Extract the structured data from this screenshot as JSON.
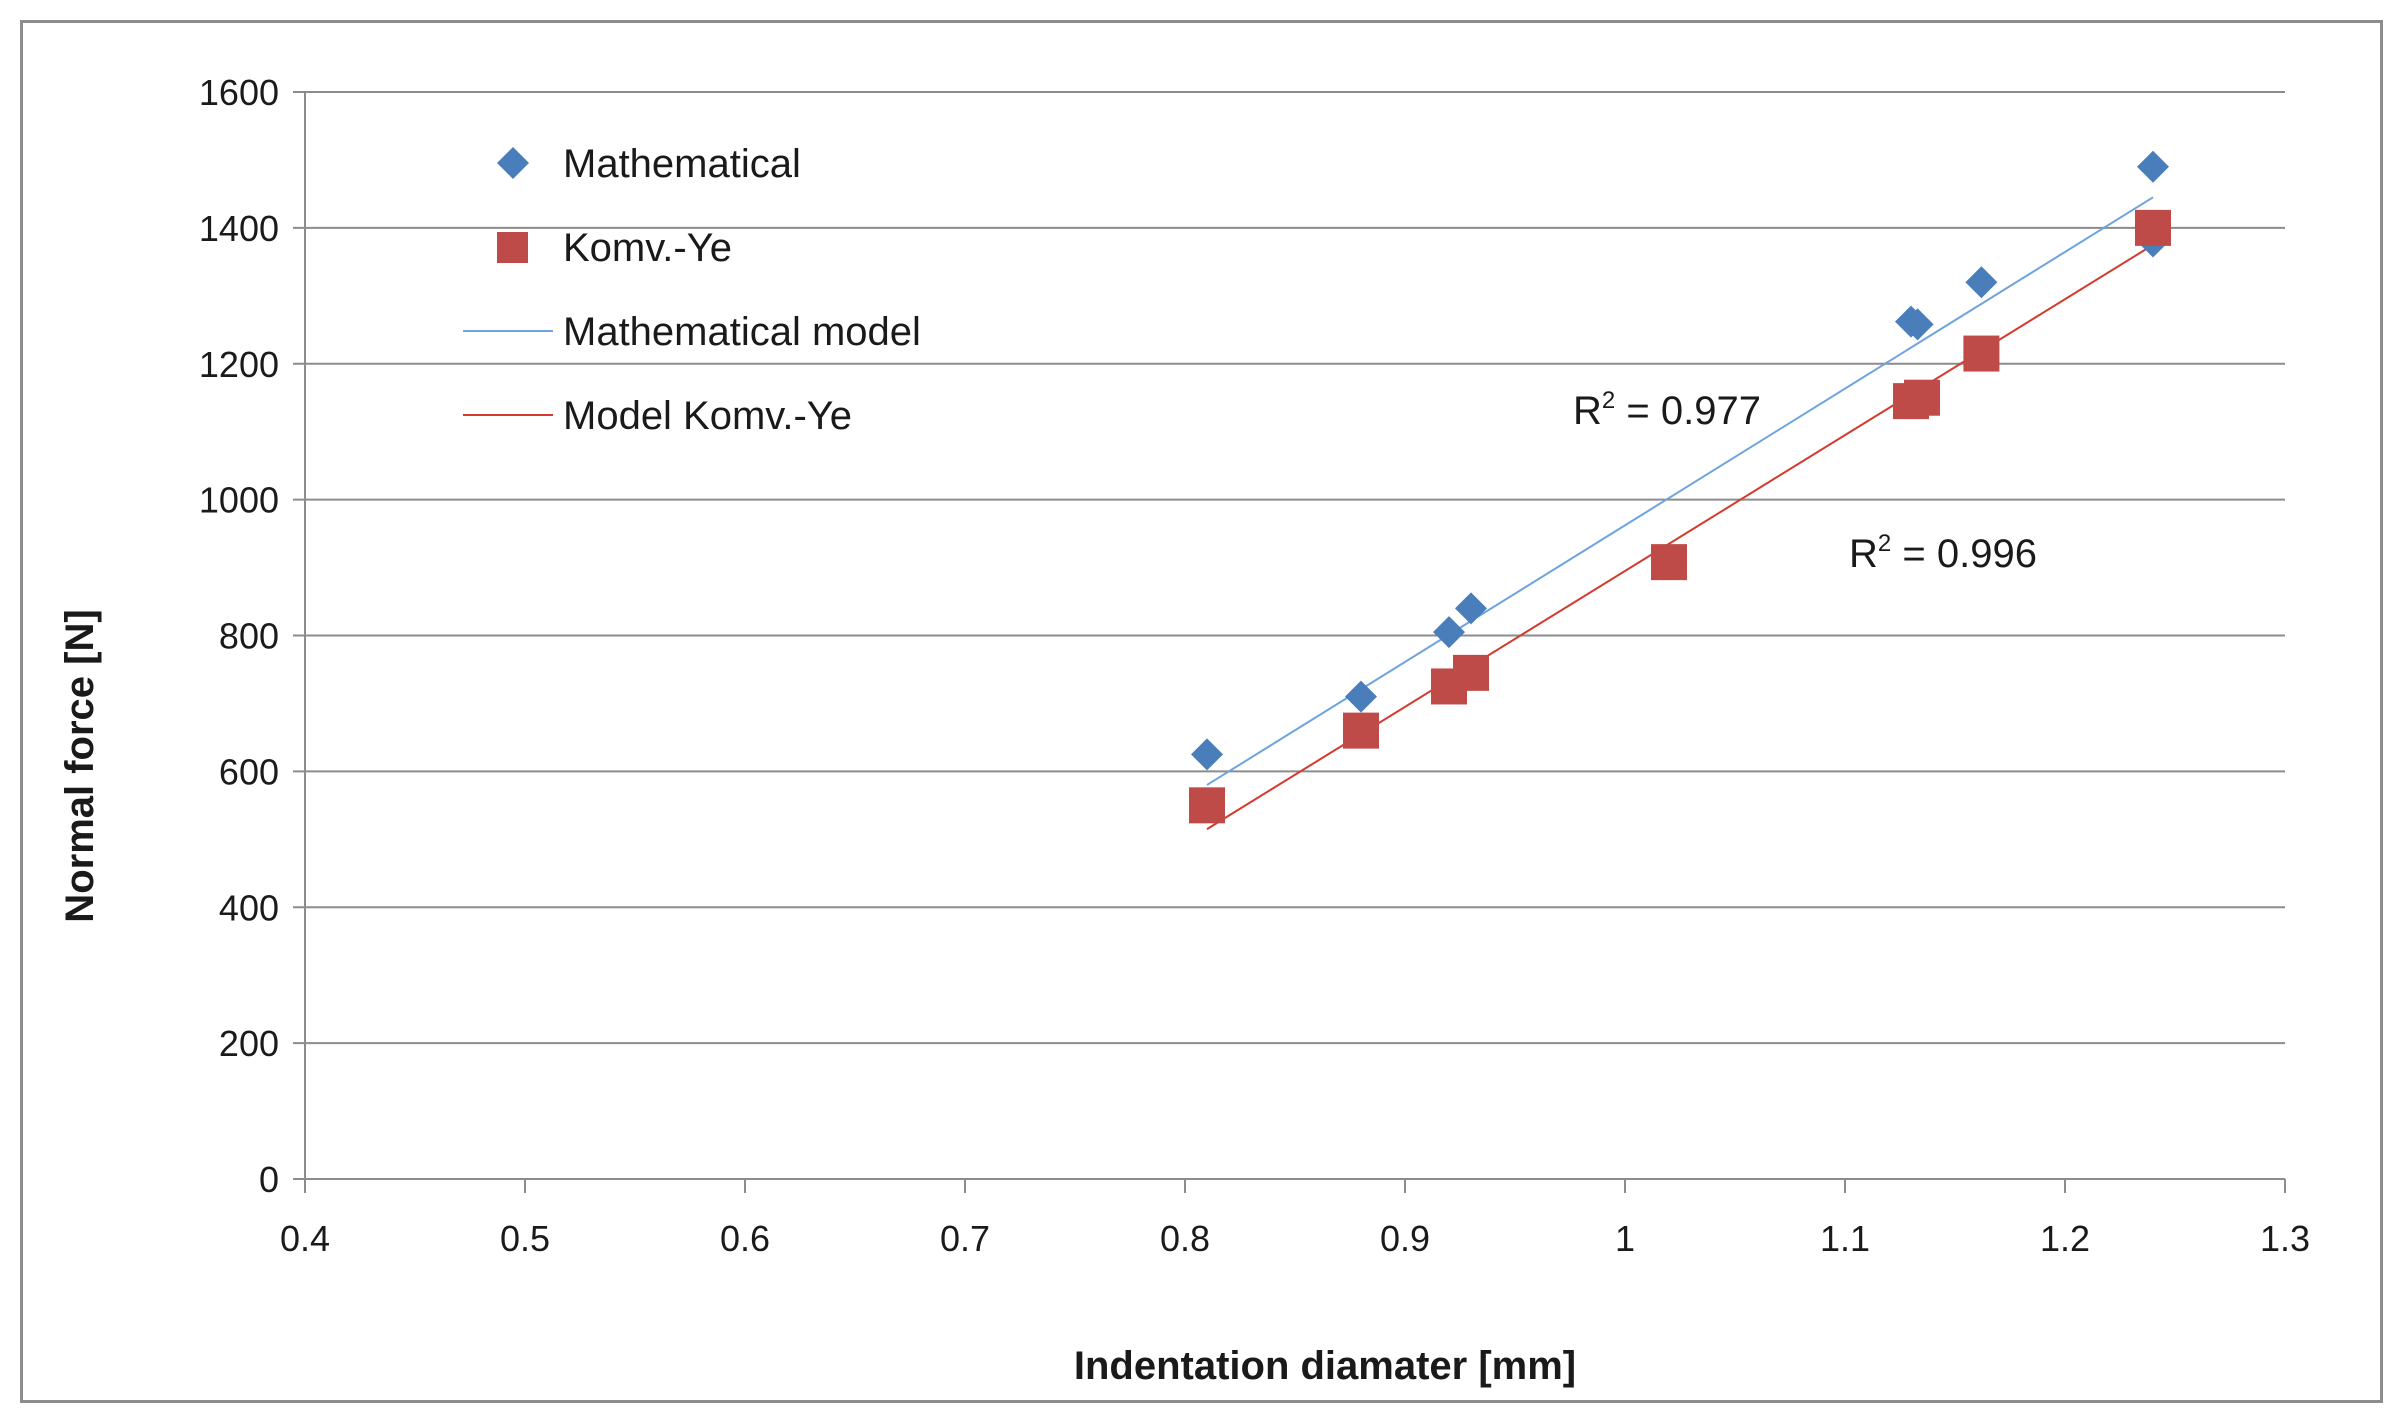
{
  "chart_data": {
    "type": "scatter",
    "title": "",
    "xlabel": "Indentation diamater [mm]",
    "ylabel": "Normal force [N]",
    "xlim": [
      0.4,
      1.3
    ],
    "ylim": [
      0,
      1600
    ],
    "x_ticks": [
      0.4,
      0.5,
      0.6,
      0.7,
      0.8,
      0.9,
      1,
      1.1,
      1.2,
      1.3
    ],
    "x_tick_labels": [
      "0.4",
      "0.5",
      "0.6",
      "0.7",
      "0.8",
      "0.9",
      "1",
      "1.1",
      "1.2",
      "1.3"
    ],
    "y_ticks": [
      0,
      200,
      400,
      600,
      800,
      1000,
      1200,
      1400,
      1600
    ],
    "y_tick_labels": [
      "0",
      "200",
      "400",
      "600",
      "800",
      "1000",
      "1200",
      "1400",
      "1600"
    ],
    "grid": "horizontal",
    "legend_position": "top-left",
    "series": [
      {
        "name": "Mathematical",
        "kind": "scatter",
        "marker": "diamond",
        "color": "#4a7ebb",
        "points": [
          {
            "x": 0.81,
            "y": 625
          },
          {
            "x": 0.88,
            "y": 710
          },
          {
            "x": 0.92,
            "y": 805
          },
          {
            "x": 0.93,
            "y": 840
          },
          {
            "x": 1.02,
            "y": 905
          },
          {
            "x": 1.13,
            "y": 1262
          },
          {
            "x": 1.133,
            "y": 1258
          },
          {
            "x": 1.162,
            "y": 1320
          },
          {
            "x": 1.24,
            "y": 1490
          },
          {
            "x": 1.24,
            "y": 1380
          }
        ]
      },
      {
        "name": "Komv.-Ye",
        "kind": "scatter",
        "marker": "square",
        "color": "#be4b48",
        "points": [
          {
            "x": 0.81,
            "y": 550
          },
          {
            "x": 0.88,
            "y": 660
          },
          {
            "x": 0.92,
            "y": 725
          },
          {
            "x": 0.93,
            "y": 745
          },
          {
            "x": 1.02,
            "y": 908
          },
          {
            "x": 1.13,
            "y": 1145
          },
          {
            "x": 1.135,
            "y": 1150
          },
          {
            "x": 1.162,
            "y": 1215
          },
          {
            "x": 1.24,
            "y": 1400
          }
        ]
      },
      {
        "name": "Mathematical model",
        "kind": "line",
        "color": "#6fa3e0",
        "points": [
          {
            "x": 0.81,
            "y": 580
          },
          {
            "x": 1.24,
            "y": 1445
          }
        ]
      },
      {
        "name": "Model Komv.-Ye",
        "kind": "line",
        "color": "#d43a2f",
        "points": [
          {
            "x": 0.81,
            "y": 515
          },
          {
            "x": 1.24,
            "y": 1375
          }
        ]
      }
    ],
    "annotations": [
      {
        "id": "r2-math",
        "base": "R",
        "sup": "2",
        "rest": " = 0.977"
      },
      {
        "id": "r2-komv",
        "base": "R",
        "sup": "2",
        "rest": " = 0.996"
      }
    ]
  }
}
